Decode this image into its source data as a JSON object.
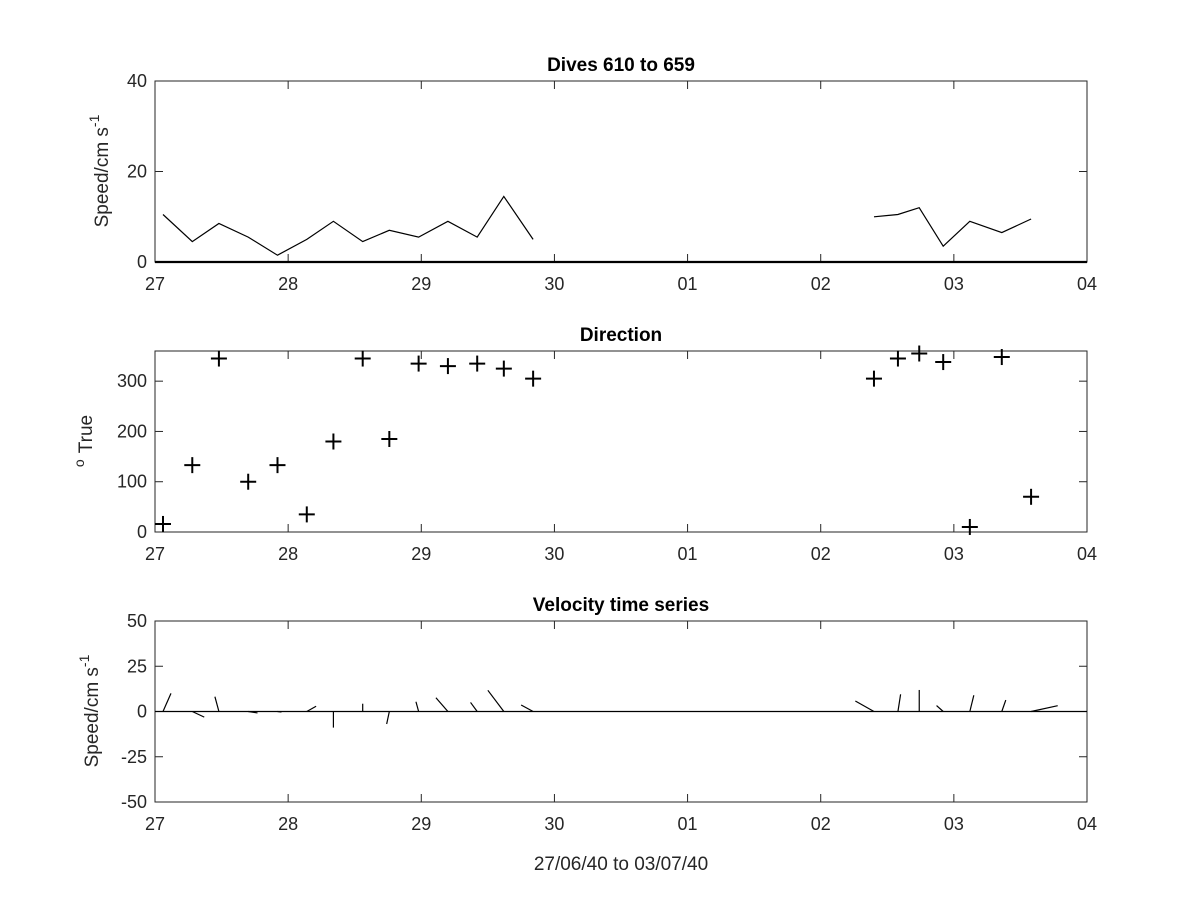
{
  "figure": {
    "xlabel": "27/06/40 to 03/07/40",
    "x_ticks": [
      0,
      1,
      2,
      3,
      4,
      5,
      6,
      7
    ],
    "x_tick_labels": [
      "27",
      "28",
      "29",
      "30",
      "01",
      "02",
      "03",
      "04"
    ],
    "xlim": [
      0,
      7
    ],
    "colors": {
      "line": "#000000",
      "axis": "#262626",
      "background": "#ffffff"
    }
  },
  "chart_data": [
    {
      "type": "line",
      "title": "Dives 610 to 659",
      "ylabel": "Speed/cm s",
      "ylabel_superscript": "-1",
      "ylim": [
        0,
        40
      ],
      "y_ticks": [
        0,
        20,
        40
      ],
      "y_tick_labels": [
        "0",
        "20",
        "40"
      ],
      "zero_line": true,
      "series": [
        {
          "segments": [
            {
              "x": [
                0.06,
                0.28,
                0.48,
                0.7,
                0.92,
                1.14,
                1.34,
                1.56,
                1.76,
                1.98,
                2.2,
                2.42,
                2.62,
                2.84
              ],
              "y": [
                10.5,
                4.5,
                8.5,
                5.5,
                1.5,
                5.0,
                9.0,
                4.5,
                7.0,
                5.5,
                9.0,
                5.5,
                14.5,
                5.0
              ]
            },
            {
              "x": [
                5.4,
                5.58,
                5.74,
                5.92,
                6.12,
                6.36,
                6.58
              ],
              "y": [
                10.0,
                10.5,
                12.0,
                3.5,
                9.0,
                6.5,
                9.5
              ]
            }
          ]
        }
      ]
    },
    {
      "type": "scatter",
      "title": "Direction",
      "ylabel": "True",
      "ylabel_prefix": "o",
      "ylim": [
        0,
        360
      ],
      "y_ticks": [
        0,
        100,
        200,
        300
      ],
      "y_tick_labels": [
        "0",
        "100",
        "200",
        "300"
      ],
      "marker": "+",
      "x": [
        0.06,
        0.28,
        0.48,
        0.7,
        0.92,
        1.14,
        1.34,
        1.56,
        1.76,
        1.98,
        2.2,
        2.42,
        2.62,
        2.84,
        5.4,
        5.58,
        5.74,
        5.92,
        6.12,
        6.36,
        6.58
      ],
      "y": [
        16,
        133,
        345,
        100,
        133,
        35,
        180,
        345,
        185,
        335,
        330,
        335,
        325,
        305,
        305,
        345,
        355,
        338,
        10,
        348,
        70
      ]
    },
    {
      "type": "line",
      "subtype": "stick",
      "title": "Velocity time series",
      "ylabel": "Speed/cm s",
      "ylabel_superscript": "-1",
      "ylim": [
        -50,
        50
      ],
      "y_ticks": [
        -50,
        -25,
        0,
        25,
        50
      ],
      "y_tick_labels": [
        "-50",
        "-25",
        "0",
        "25",
        "50"
      ],
      "zero_line": true,
      "stick_base_x": [
        0.06,
        0.28,
        0.48,
        0.7,
        0.92,
        1.14,
        1.34,
        1.56,
        1.76,
        1.98,
        2.2,
        2.42,
        2.62,
        2.84,
        5.4,
        5.58,
        5.74,
        5.92,
        6.12,
        6.36,
        6.58
      ],
      "stick_u": [
        0.06,
        0.09,
        -0.03,
        0.07,
        0.03,
        0.07,
        0.0,
        0.0,
        -0.02,
        -0.02,
        -0.09,
        -0.05,
        -0.12,
        -0.09,
        -0.14,
        0.02,
        0.0,
        -0.05,
        0.03,
        0.03,
        0.2
      ],
      "stick_v": [
        10.0,
        -3.1,
        8.2,
        -0.8,
        -0.3,
        2.9,
        -8.9,
        4.3,
        -6.9,
        5.4,
        7.6,
        5.0,
        11.7,
        3.6,
        5.8,
        9.5,
        11.9,
        3.3,
        9.0,
        6.3,
        3.2
      ]
    }
  ]
}
